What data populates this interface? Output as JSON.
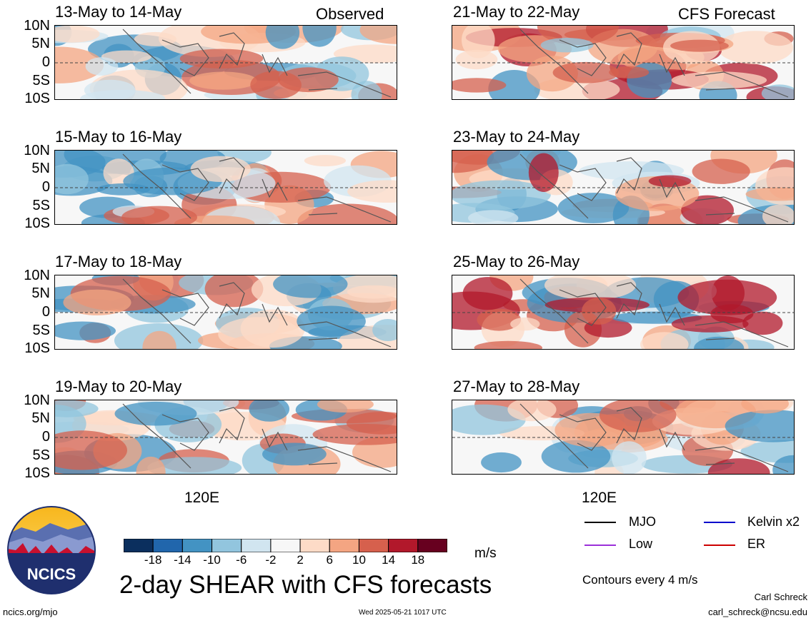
{
  "observed_label": "Observed",
  "forecast_label": "CFS Forecast",
  "y_ticks": [
    "10N",
    "5N",
    "0",
    "5S",
    "10S"
  ],
  "x_tick": "120E",
  "chart_data": {
    "type": "heatmap",
    "variable": "2-day SHEAR",
    "unit": "m/s",
    "panels": [
      {
        "title": "13-May to 14-May",
        "kind": "Observed"
      },
      {
        "title": "15-May to 16-May",
        "kind": "Observed"
      },
      {
        "title": "17-May to 18-May",
        "kind": "Observed"
      },
      {
        "title": "19-May to 20-May",
        "kind": "Observed"
      },
      {
        "title": "21-May to 22-May",
        "kind": "CFS Forecast"
      },
      {
        "title": "23-May to 24-May",
        "kind": "CFS Forecast"
      },
      {
        "title": "25-May to 26-May",
        "kind": "CFS Forecast"
      },
      {
        "title": "27-May to 28-May",
        "kind": "CFS Forecast"
      }
    ],
    "colorbar": {
      "labels": [
        "-18",
        "-14",
        "-10",
        "-6",
        "-2",
        "2",
        "6",
        "10",
        "14",
        "18"
      ],
      "colors": [
        "#0b2f5e",
        "#2166ac",
        "#4393c3",
        "#92c5de",
        "#d1e5f0",
        "#f7f7f7",
        "#fddbc7",
        "#f4a582",
        "#d6604d",
        "#b2182b",
        "#67001f"
      ]
    }
  },
  "legend": {
    "items": [
      {
        "label": "MJO",
        "color": "#000000"
      },
      {
        "label": "Kelvin x2",
        "color": "#0000cc"
      },
      {
        "label": "Low",
        "color": "#9b30d9"
      },
      {
        "label": "ER",
        "color": "#cc0000"
      }
    ],
    "note": "Contours every 4 m/s"
  },
  "footer": {
    "title": "2-day SHEAR with CFS forecasts",
    "logo_text": "NCICS",
    "url": "ncics.org/mjo",
    "timestamp": "Wed 2025-05-21 1017 UTC",
    "author": "Carl Schreck",
    "email": "carl_schreck@ncsu.edu"
  }
}
